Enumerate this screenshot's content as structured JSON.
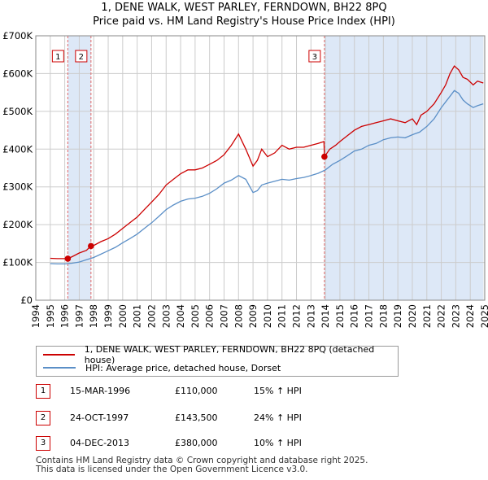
{
  "title_line1": "1, DENE WALK, WEST PARLEY, FERNDOWN, BH22 8PQ",
  "title_line2": "Price paid vs. HM Land Registry's House Price Index (HPI)",
  "chart_data": {
    "type": "line",
    "title": "1, DENE WALK, WEST PARLEY, FERNDOWN, BH22 8PQ — Price paid vs. HM Land Registry's House Price Index (HPI)",
    "xlim": [
      1994,
      2025
    ],
    "ylim": [
      0,
      700000
    ],
    "x_ticks": [
      "1994",
      "1995",
      "1996",
      "1997",
      "1998",
      "1999",
      "2000",
      "2001",
      "2002",
      "2003",
      "2004",
      "2005",
      "2006",
      "2007",
      "2008",
      "2009",
      "2010",
      "2011",
      "2012",
      "2013",
      "2014",
      "2015",
      "2016",
      "2017",
      "2018",
      "2019",
      "2020",
      "2021",
      "2022",
      "2023",
      "2024",
      "2025"
    ],
    "y_ticks": [
      {
        "value": 0,
        "label": "£0"
      },
      {
        "value": 100000,
        "label": "£100K"
      },
      {
        "value": 200000,
        "label": "£200K"
      },
      {
        "value": 300000,
        "label": "£300K"
      },
      {
        "value": 400000,
        "label": "£400K"
      },
      {
        "value": 500000,
        "label": "£500K"
      },
      {
        "value": 600000,
        "label": "£600K"
      },
      {
        "value": 700000,
        "label": "£700K"
      }
    ],
    "series": [
      {
        "name": "1, DENE WALK, WEST PARLEY, FERNDOWN, BH22 8PQ (detached house)",
        "color": "#cc0000",
        "x": [
          1995.0,
          1995.5,
          1996.0,
          1996.2,
          1996.5,
          1997.0,
          1997.5,
          1997.8,
          1998.0,
          1998.5,
          1999.0,
          1999.5,
          2000.0,
          2000.5,
          2001.0,
          2001.5,
          2002.0,
          2002.5,
          2003.0,
          2003.5,
          2004.0,
          2004.5,
          2005.0,
          2005.5,
          2006.0,
          2006.5,
          2007.0,
          2007.5,
          2008.0,
          2008.5,
          2009.0,
          2009.3,
          2009.6,
          2010.0,
          2010.5,
          2011.0,
          2011.5,
          2012.0,
          2012.5,
          2013.0,
          2013.5,
          2013.9,
          2013.93,
          2014.3,
          2014.7,
          2015.0,
          2015.5,
          2016.0,
          2016.5,
          2017.0,
          2017.5,
          2018.0,
          2018.5,
          2019.0,
          2019.5,
          2020.0,
          2020.3,
          2020.6,
          2021.0,
          2021.5,
          2022.0,
          2022.3,
          2022.6,
          2022.9,
          2023.2,
          2023.5,
          2023.8,
          2024.2,
          2024.5,
          2024.9
        ],
        "values": [
          111000,
          110000,
          110000,
          110000,
          115000,
          125000,
          132000,
          143500,
          145000,
          155000,
          163000,
          175000,
          190000,
          205000,
          220000,
          240000,
          260000,
          280000,
          305000,
          320000,
          335000,
          345000,
          345000,
          350000,
          360000,
          370000,
          385000,
          410000,
          440000,
          400000,
          355000,
          370000,
          400000,
          380000,
          390000,
          410000,
          400000,
          405000,
          405000,
          410000,
          415000,
          420000,
          380000,
          400000,
          410000,
          420000,
          435000,
          450000,
          460000,
          465000,
          470000,
          475000,
          480000,
          475000,
          470000,
          480000,
          465000,
          490000,
          500000,
          520000,
          550000,
          570000,
          600000,
          620000,
          610000,
          590000,
          585000,
          570000,
          580000,
          575000
        ]
      },
      {
        "name": "HPI: Average price, detached house, Dorset",
        "color": "#5b8fc7",
        "x": [
          1995.0,
          1995.5,
          1996.0,
          1996.5,
          1997.0,
          1997.5,
          1998.0,
          1998.5,
          1999.0,
          1999.5,
          2000.0,
          2000.5,
          2001.0,
          2001.5,
          2002.0,
          2002.5,
          2003.0,
          2003.5,
          2004.0,
          2004.5,
          2005.0,
          2005.5,
          2006.0,
          2006.5,
          2007.0,
          2007.5,
          2008.0,
          2008.5,
          2009.0,
          2009.3,
          2009.6,
          2010.0,
          2010.5,
          2011.0,
          2011.5,
          2012.0,
          2012.5,
          2013.0,
          2013.5,
          2014.0,
          2014.5,
          2015.0,
          2015.5,
          2016.0,
          2016.5,
          2017.0,
          2017.5,
          2018.0,
          2018.5,
          2019.0,
          2019.5,
          2020.0,
          2020.5,
          2021.0,
          2021.5,
          2022.0,
          2022.3,
          2022.6,
          2022.9,
          2023.2,
          2023.5,
          2023.8,
          2024.2,
          2024.5,
          2024.9
        ],
        "values": [
          97000,
          96000,
          96000,
          98000,
          101000,
          107000,
          113000,
          122000,
          131000,
          140000,
          152000,
          163000,
          175000,
          190000,
          205000,
          222000,
          240000,
          252000,
          262000,
          268000,
          270000,
          275000,
          283000,
          295000,
          310000,
          318000,
          330000,
          320000,
          285000,
          290000,
          305000,
          310000,
          315000,
          320000,
          318000,
          322000,
          325000,
          330000,
          336000,
          345000,
          360000,
          370000,
          382000,
          395000,
          400000,
          410000,
          415000,
          425000,
          430000,
          432000,
          430000,
          438000,
          445000,
          460000,
          480000,
          510000,
          525000,
          540000,
          555000,
          548000,
          530000,
          520000,
          510000,
          515000,
          520000
        ]
      }
    ],
    "transactions": [
      {
        "num": "1",
        "x": 1996.21,
        "price": 110000
      },
      {
        "num": "2",
        "x": 1997.81,
        "price": 143500
      },
      {
        "num": "3",
        "x": 2013.93,
        "price": 380000
      }
    ]
  },
  "legend": {
    "red_label": "1, DENE WALK, WEST PARLEY, FERNDOWN, BH22 8PQ (detached house)",
    "blue_label": "HPI: Average price, detached house, Dorset"
  },
  "table": [
    {
      "num": "1",
      "date": "15-MAR-1996",
      "price": "£110,000",
      "hpi": "15% ↑ HPI"
    },
    {
      "num": "2",
      "date": "24-OCT-1997",
      "price": "£143,500",
      "hpi": "24% ↑ HPI"
    },
    {
      "num": "3",
      "date": "04-DEC-2013",
      "price": "£380,000",
      "hpi": "10% ↑ HPI"
    }
  ],
  "footer": {
    "line1": "Contains HM Land Registry data © Crown copyright and database right 2025.",
    "line2": "This data is licensed under the Open Government Licence v3.0."
  },
  "colors": {
    "price_line": "#cc0000",
    "hpi_line": "#5b8fc7",
    "shade": "#dde8f7",
    "grid": "#cccccc"
  }
}
